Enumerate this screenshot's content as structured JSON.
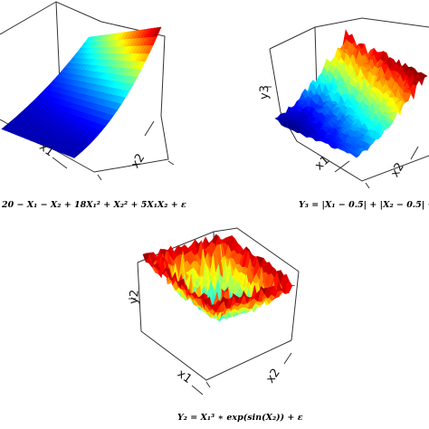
{
  "figure": {
    "panels": [
      {
        "caption": "20 − X₁ − X₂ + 18X₁² + X₂² + 5X₁X₂ + ε"
      },
      {
        "caption": "Y₃ = |X₁ − 0.5| + |X₂ − 0.5| +"
      },
      {
        "caption": "Y₂ = X₁³ ∗ exp(sin(X₂)) + ε"
      }
    ]
  },
  "chart_data": [
    {
      "type": "surface",
      "title": "",
      "xlabel": "x1",
      "ylabel": "x2",
      "zlabel": "",
      "formula": "20 − X₁ − X₂ + 18X₁² + X₂² + 5X₁X₂ + ε",
      "colormap": "jet",
      "shape": "smooth parabolic trough rising toward the far corner"
    },
    {
      "type": "surface",
      "title": "",
      "xlabel": "x1",
      "ylabel": "x2",
      "zlabel": "y3",
      "formula": "Y₃ = |X₁ − 0.5| + |X₂ − 0.5| +",
      "colormap": "jet",
      "shape": "noisy V-shaped surface, low (blue) near front, rising (red) toward far edge"
    },
    {
      "type": "surface",
      "title": "",
      "xlabel": "x1",
      "ylabel": "x2",
      "zlabel": "y2",
      "formula": "Y₂ = X₁³ ∗ exp(sin(X₂)) + ε",
      "colormap": "jet",
      "shape": "highly jagged bowl, red walls around cyan/green center"
    }
  ]
}
